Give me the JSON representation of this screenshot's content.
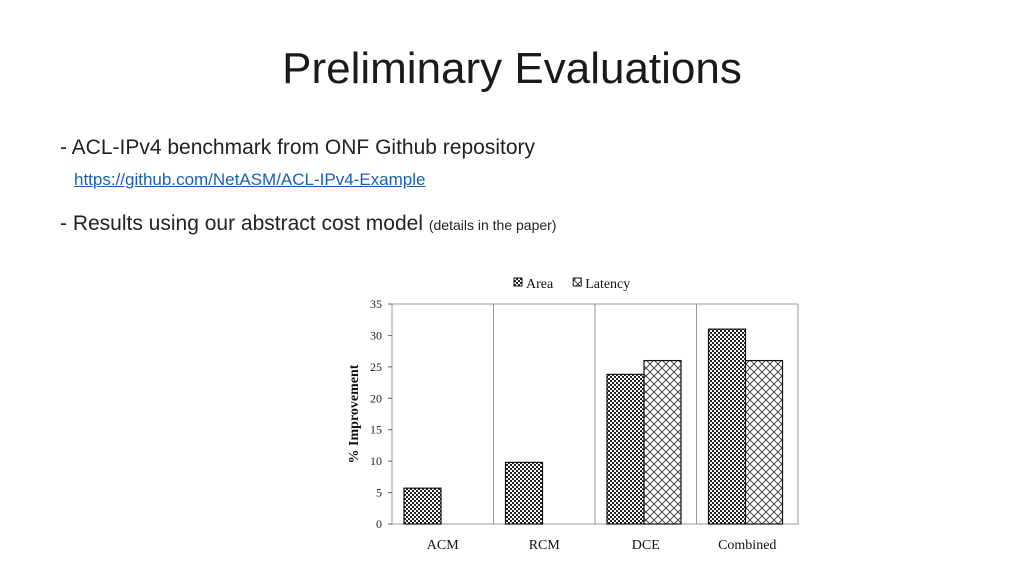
{
  "slide": {
    "title": "Preliminary Evaluations",
    "bullet1": "- ACL-IPv4 benchmark from ONF Github repository",
    "link": "https://github.com/NetASM/ACL-IPv4-Example",
    "bullet2_main": "- Results using our abstract cost model",
    "bullet2_note": "(details in the paper)"
  },
  "chart_data": {
    "type": "bar",
    "title": "",
    "xlabel": "",
    "ylabel": "% Improvement",
    "ylim": [
      0,
      35
    ],
    "yticks": [
      0,
      5,
      10,
      15,
      20,
      25,
      30,
      35
    ],
    "categories": [
      "ACM",
      "RCM",
      "DCE",
      "Combined"
    ],
    "series": [
      {
        "name": "Area",
        "values": [
          5.7,
          9.8,
          23.8,
          31.0
        ]
      },
      {
        "name": "Latency",
        "values": [
          0,
          0,
          26.0,
          26.0
        ]
      }
    ],
    "legend": "top",
    "grid": false
  }
}
